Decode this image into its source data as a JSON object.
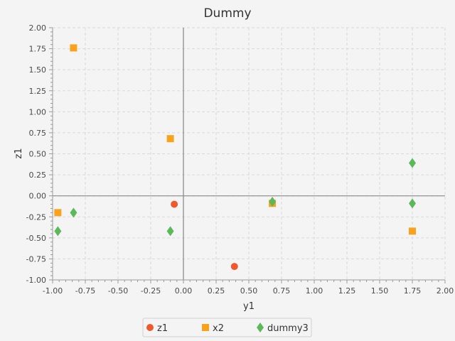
{
  "chart_data": {
    "type": "scatter",
    "title": "Dummy",
    "xlabel": "y1",
    "ylabel": "z1",
    "xlim": [
      -1.0,
      2.0
    ],
    "ylim": [
      -1.0,
      2.0
    ],
    "x_ticks": [
      "-1.00",
      "-0.75",
      "-0.50",
      "-0.25",
      "0.00",
      "0.25",
      "0.50",
      "0.75",
      "1.00",
      "1.25",
      "1.50",
      "1.75",
      "2.00"
    ],
    "y_ticks": [
      "-1.00",
      "-0.75",
      "-0.50",
      "-0.25",
      "0.00",
      "0.25",
      "0.50",
      "0.75",
      "1.00",
      "1.25",
      "1.50",
      "1.75",
      "2.00"
    ],
    "grid": true,
    "legend_position": "bottom",
    "series": [
      {
        "name": "z1",
        "marker": "circle",
        "color": "#f0582e",
        "points": [
          [
            -0.07,
            -0.1
          ],
          [
            0.39,
            -0.84
          ]
        ]
      },
      {
        "name": "x2",
        "marker": "square",
        "color": "#f9a21d",
        "points": [
          [
            -0.84,
            1.76
          ],
          [
            -0.1,
            0.68
          ],
          [
            -0.96,
            -0.2
          ],
          [
            0.68,
            -0.09
          ],
          [
            1.75,
            -0.42
          ]
        ]
      },
      {
        "name": "dummy3",
        "marker": "diamond",
        "color": "#5db85a",
        "points": [
          [
            -0.84,
            -0.2
          ],
          [
            -0.96,
            -0.42
          ],
          [
            -0.1,
            -0.42
          ],
          [
            0.68,
            -0.07
          ],
          [
            1.75,
            0.39
          ],
          [
            1.75,
            -0.09
          ]
        ]
      }
    ]
  }
}
